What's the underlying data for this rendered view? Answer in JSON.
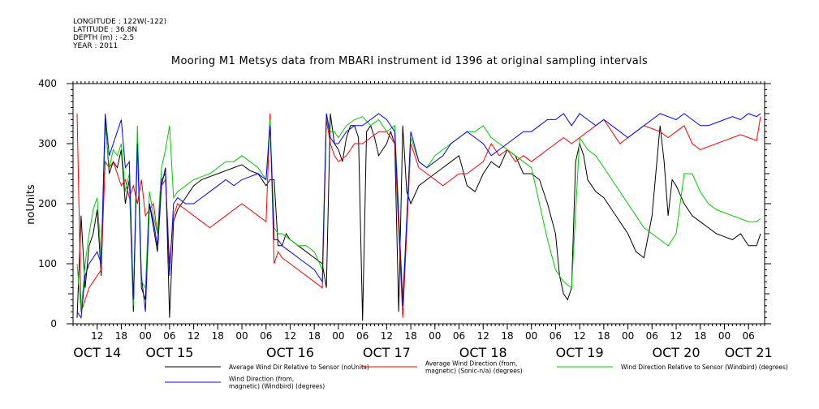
{
  "header": {
    "longitude": "LONGITUDE : 122W(-122)",
    "latitude": "LATITUDE : 36.8N",
    "depth": "DEPTH (m) : -2.5",
    "year": "YEAR : 2011"
  },
  "chart_data": {
    "type": "line",
    "title": "Mooring M1 Metsys data from MBARI instrument id 1396 at original sampling intervals",
    "ylabel": "noUnits",
    "xlabel": "",
    "ylim": [
      0,
      400
    ],
    "yticks": [
      0,
      100,
      200,
      300,
      400
    ],
    "xlim_hours": [
      6,
      178
    ],
    "hour_ticks": [
      {
        "h": 12,
        "label": "12"
      },
      {
        "h": 18,
        "label": "18"
      },
      {
        "h": 24,
        "label": "00"
      },
      {
        "h": 30,
        "label": "06"
      },
      {
        "h": 36,
        "label": "12"
      },
      {
        "h": 42,
        "label": "18"
      },
      {
        "h": 48,
        "label": "00"
      },
      {
        "h": 54,
        "label": "06"
      },
      {
        "h": 60,
        "label": "12"
      },
      {
        "h": 66,
        "label": "18"
      },
      {
        "h": 72,
        "label": "00"
      },
      {
        "h": 78,
        "label": "06"
      },
      {
        "h": 84,
        "label": "12"
      },
      {
        "h": 90,
        "label": "18"
      },
      {
        "h": 96,
        "label": "00"
      },
      {
        "h": 102,
        "label": "06"
      },
      {
        "h": 108,
        "label": "12"
      },
      {
        "h": 114,
        "label": "18"
      },
      {
        "h": 120,
        "label": "00"
      },
      {
        "h": 126,
        "label": "06"
      },
      {
        "h": 132,
        "label": "12"
      },
      {
        "h": 138,
        "label": "18"
      },
      {
        "h": 144,
        "label": "00"
      },
      {
        "h": 150,
        "label": "06"
      },
      {
        "h": 156,
        "label": "12"
      },
      {
        "h": 162,
        "label": "18"
      },
      {
        "h": 168,
        "label": "00"
      },
      {
        "h": 174,
        "label": "06"
      }
    ],
    "day_labels": [
      {
        "h": 12,
        "label": "OCT 14"
      },
      {
        "h": 30,
        "label": "OCT 15"
      },
      {
        "h": 60,
        "label": "OCT 16"
      },
      {
        "h": 84,
        "label": "OCT 17"
      },
      {
        "h": 108,
        "label": "OCT 18"
      },
      {
        "h": 132,
        "label": "OCT 19"
      },
      {
        "h": 156,
        "label": "OCT 20"
      },
      {
        "h": 174,
        "label": "OCT 21"
      }
    ],
    "series": [
      {
        "name": "Average Wind Dir Relative to Sensor (noUnits)",
        "color": "#000000",
        "x": [
          7,
          8,
          9,
          10,
          11,
          12,
          13,
          14,
          15,
          16,
          17,
          18,
          19,
          20,
          21,
          22,
          23,
          24,
          25,
          26,
          27,
          28,
          29,
          30,
          31,
          32,
          33,
          34,
          35,
          36,
          38,
          40,
          42,
          44,
          46,
          48,
          50,
          52,
          54,
          55,
          56,
          57,
          58,
          59,
          60,
          62,
          64,
          66,
          68,
          69,
          70,
          71,
          72,
          73,
          74,
          75,
          76,
          77,
          78,
          79,
          80,
          81,
          82,
          83,
          84,
          85,
          86,
          87,
          88,
          89,
          90,
          92,
          94,
          96,
          98,
          100,
          102,
          104,
          106,
          108,
          110,
          112,
          114,
          116,
          118,
          120,
          122,
          124,
          126,
          127,
          128,
          129,
          130,
          131,
          132,
          133,
          134,
          135,
          136,
          138,
          140,
          142,
          144,
          146,
          148,
          150,
          152,
          153,
          154,
          155,
          156,
          158,
          160,
          162,
          164,
          166,
          168,
          170,
          172,
          174,
          176,
          177
        ],
        "y": [
          10,
          180,
          60,
          130,
          150,
          190,
          80,
          340,
          250,
          270,
          260,
          290,
          200,
          240,
          20,
          310,
          60,
          40,
          200,
          160,
          120,
          230,
          260,
          10,
          170,
          190,
          200,
          210,
          220,
          230,
          240,
          245,
          250,
          255,
          260,
          265,
          255,
          250,
          230,
          240,
          240,
          130,
          130,
          150,
          140,
          130,
          120,
          110,
          100,
          60,
          350,
          300,
          290,
          270,
          310,
          330,
          330,
          310,
          5,
          320,
          330,
          310,
          280,
          290,
          300,
          320,
          300,
          20,
          330,
          220,
          200,
          230,
          240,
          250,
          260,
          270,
          280,
          230,
          220,
          250,
          270,
          260,
          290,
          280,
          250,
          250,
          240,
          200,
          150,
          80,
          50,
          40,
          60,
          270,
          300,
          280,
          240,
          230,
          220,
          210,
          190,
          170,
          150,
          120,
          110,
          180,
          330,
          270,
          180,
          240,
          230,
          200,
          180,
          170,
          160,
          150,
          145,
          140,
          150,
          130,
          130,
          150
        ],
        "label_y": 0
      },
      {
        "name": "Average Wind Direction (from, magnetic) (Sonic-n/a) (degrees)",
        "color": "#ff0000",
        "x": [
          7,
          8,
          9,
          10,
          11,
          12,
          13,
          14,
          15,
          16,
          17,
          18,
          19,
          20,
          21,
          22,
          23,
          24,
          25,
          26,
          27,
          28,
          29,
          30,
          31,
          32,
          34,
          36,
          38,
          40,
          42,
          44,
          46,
          48,
          50,
          52,
          54,
          55,
          56,
          57,
          58,
          60,
          62,
          64,
          66,
          68,
          69,
          70,
          71,
          72,
          74,
          76,
          78,
          80,
          82,
          84,
          86,
          88,
          90,
          92,
          94,
          96,
          98,
          100,
          102,
          104,
          106,
          108,
          110,
          112,
          114,
          116,
          118,
          120,
          122,
          124,
          126,
          128,
          130,
          132,
          134,
          136,
          138,
          140,
          142,
          144,
          146,
          148,
          150,
          152,
          154,
          156,
          158,
          160,
          162,
          164,
          166,
          168,
          170,
          172,
          174,
          176,
          177
        ],
        "y": [
          350,
          20,
          40,
          60,
          70,
          80,
          90,
          270,
          260,
          270,
          250,
          230,
          240,
          210,
          230,
          200,
          240,
          180,
          190,
          200,
          150,
          230,
          240,
          100,
          180,
          200,
          190,
          180,
          170,
          160,
          170,
          180,
          190,
          200,
          190,
          180,
          170,
          350,
          100,
          120,
          110,
          100,
          90,
          80,
          70,
          60,
          340,
          300,
          280,
          270,
          280,
          300,
          300,
          310,
          320,
          320,
          300,
          10,
          300,
          260,
          250,
          240,
          230,
          240,
          250,
          250,
          260,
          270,
          300,
          280,
          290,
          270,
          280,
          270,
          280,
          290,
          300,
          310,
          300,
          310,
          320,
          330,
          340,
          320,
          300,
          310,
          320,
          330,
          325,
          320,
          310,
          320,
          330,
          300,
          290,
          295,
          300,
          305,
          310,
          315,
          310,
          305,
          345
        ],
        "label_y": 0
      },
      {
        "name": "Wind Direction Relative to Sensor (Windbird) (degrees)",
        "color": "#00cc00",
        "x": [
          7,
          8,
          9,
          10,
          11,
          12,
          13,
          14,
          15,
          16,
          17,
          18,
          19,
          20,
          21,
          22,
          23,
          24,
          25,
          26,
          27,
          28,
          29,
          30,
          31,
          32,
          34,
          36,
          38,
          40,
          42,
          44,
          46,
          48,
          50,
          52,
          54,
          55,
          56,
          57,
          58,
          60,
          62,
          64,
          66,
          68,
          69,
          70,
          71,
          72,
          74,
          76,
          78,
          80,
          82,
          84,
          86,
          88,
          90,
          92,
          94,
          96,
          98,
          100,
          102,
          104,
          106,
          108,
          110,
          112,
          114,
          116,
          118,
          120,
          122,
          124,
          126,
          128,
          130,
          132,
          134,
          136,
          138,
          140,
          142,
          144,
          146,
          148,
          150,
          152,
          154,
          156,
          158,
          160,
          162,
          164,
          166,
          168,
          170,
          172,
          174,
          176,
          177
        ],
        "y": [
          100,
          20,
          100,
          150,
          190,
          210,
          110,
          330,
          260,
          290,
          280,
          300,
          220,
          250,
          30,
          330,
          70,
          60,
          220,
          180,
          150,
          260,
          290,
          330,
          210,
          220,
          230,
          240,
          245,
          250,
          260,
          270,
          270,
          280,
          270,
          260,
          240,
          340,
          160,
          150,
          150,
          140,
          130,
          130,
          120,
          90,
          350,
          320,
          320,
          310,
          330,
          340,
          345,
          330,
          340,
          320,
          330,
          40,
          310,
          270,
          260,
          280,
          290,
          300,
          310,
          320,
          320,
          330,
          310,
          300,
          290,
          280,
          270,
          260,
          200,
          140,
          90,
          70,
          60,
          310,
          290,
          280,
          260,
          240,
          220,
          200,
          180,
          160,
          150,
          140,
          130,
          150,
          250,
          250,
          220,
          200,
          190,
          185,
          180,
          175,
          170,
          170,
          175
        ],
        "label_y": 0
      },
      {
        "name": "Wind Direction (from, magnetic) (Windbird) (degrees)",
        "color": "#0000ff",
        "x": [
          7,
          8,
          9,
          10,
          11,
          12,
          13,
          14,
          15,
          16,
          17,
          18,
          19,
          20,
          21,
          22,
          23,
          24,
          25,
          26,
          27,
          28,
          29,
          30,
          31,
          32,
          34,
          36,
          38,
          40,
          42,
          44,
          46,
          48,
          50,
          52,
          54,
          55,
          56,
          57,
          58,
          60,
          62,
          64,
          66,
          68,
          69,
          70,
          71,
          72,
          74,
          76,
          78,
          80,
          82,
          84,
          86,
          88,
          90,
          92,
          94,
          96,
          98,
          100,
          102,
          104,
          106,
          108,
          110,
          112,
          114,
          116,
          118,
          120,
          122,
          124,
          126,
          128,
          130,
          132,
          134,
          136,
          138,
          140,
          142,
          144,
          146,
          148,
          150,
          152,
          154,
          156,
          158,
          160,
          162,
          164,
          166,
          168,
          170,
          172,
          174,
          176,
          177
        ],
        "y": [
          20,
          10,
          80,
          100,
          110,
          120,
          100,
          350,
          280,
          300,
          320,
          340,
          260,
          270,
          40,
          300,
          80,
          20,
          200,
          170,
          130,
          240,
          250,
          80,
          200,
          210,
          200,
          200,
          210,
          220,
          230,
          240,
          230,
          240,
          245,
          250,
          240,
          330,
          140,
          140,
          130,
          120,
          110,
          100,
          90,
          70,
          350,
          310,
          300,
          300,
          320,
          330,
          330,
          340,
          350,
          340,
          320,
          30,
          320,
          270,
          260,
          270,
          280,
          300,
          310,
          320,
          310,
          300,
          280,
          290,
          300,
          310,
          320,
          320,
          330,
          340,
          340,
          350,
          330,
          350,
          340,
          330,
          340,
          330,
          320,
          310,
          320,
          330,
          340,
          350,
          345,
          340,
          350,
          340,
          330,
          330,
          335,
          340,
          345,
          340,
          350,
          345,
          350
        ],
        "label_y": 0
      }
    ],
    "legend_position": "bottom"
  }
}
